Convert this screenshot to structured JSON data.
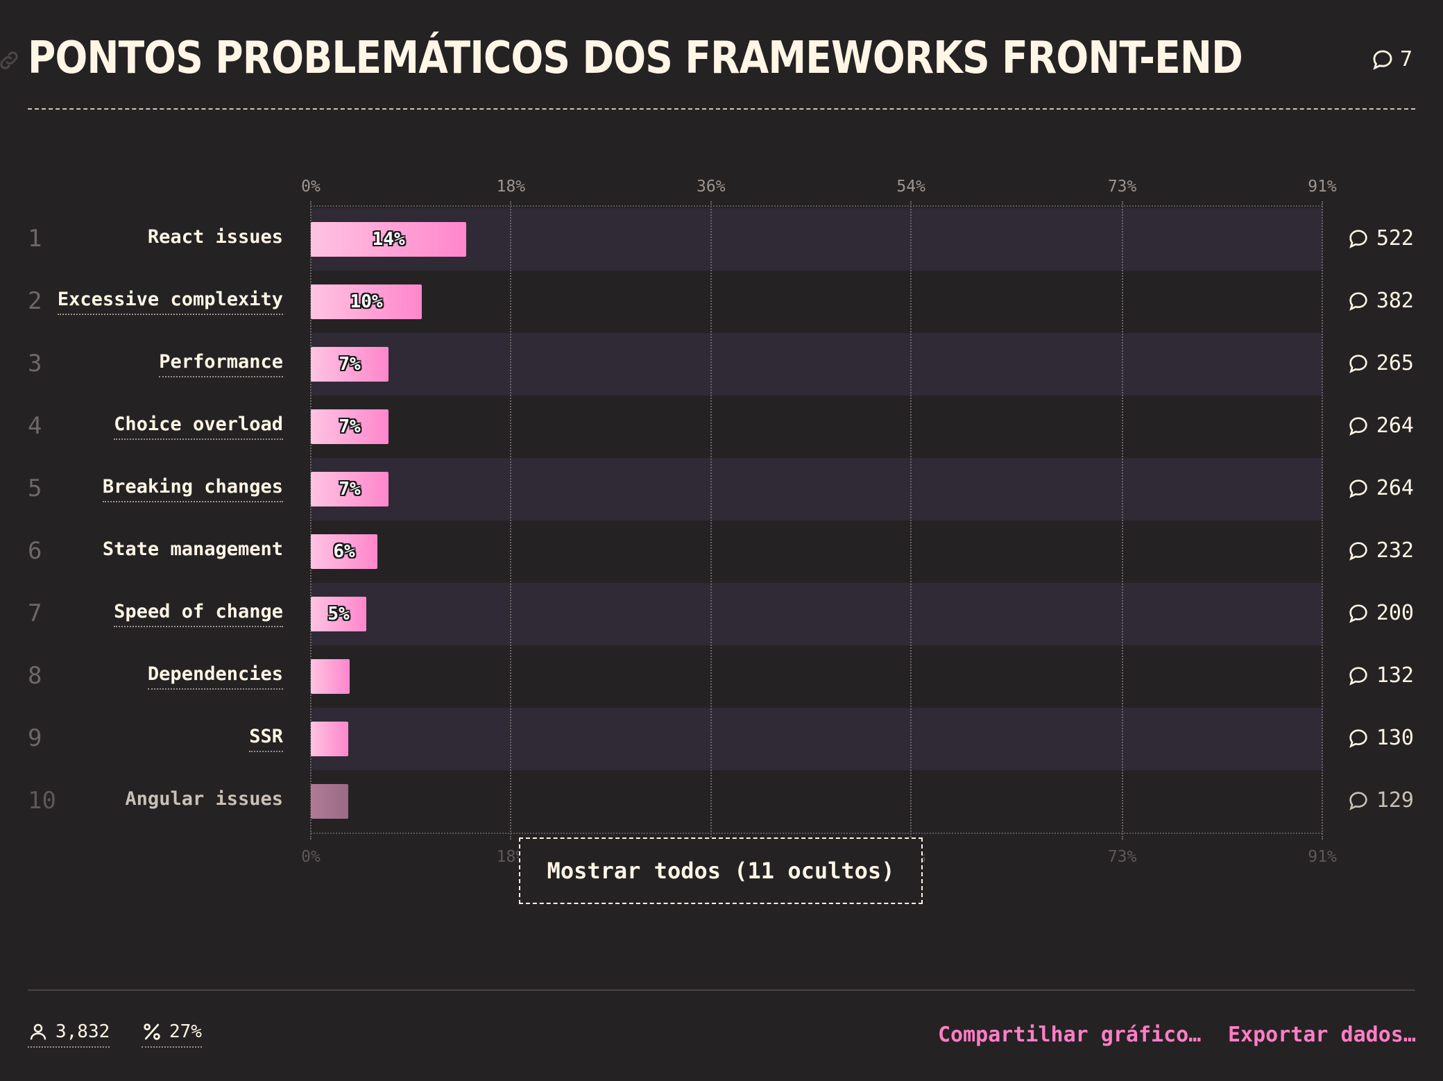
{
  "header": {
    "title": "PONTOS PROBLEMÁTICOS DOS FRAMEWORKS FRONT-END",
    "comment_count": "7"
  },
  "colors": {
    "background": "#252223",
    "bar_start": "#ffc3e2",
    "bar_end": "#ff86cc",
    "accent_link": "#ff7ec7",
    "text": "#fff6e6"
  },
  "chart_data": {
    "type": "bar",
    "orientation": "horizontal",
    "xlim": [
      0,
      91
    ],
    "ticks": [
      "0%",
      "18%",
      "36%",
      "54%",
      "73%",
      "91%"
    ],
    "tick_values": [
      0,
      18,
      36,
      54,
      73,
      91
    ],
    "grid": true,
    "rows": [
      {
        "rank": "1",
        "label": "React issues",
        "value": 14,
        "value_label": "14%",
        "comments": "522"
      },
      {
        "rank": "2",
        "label": "Excessive complexity",
        "value": 10,
        "value_label": "10%",
        "comments": "382"
      },
      {
        "rank": "3",
        "label": "Performance",
        "value": 7,
        "value_label": "7%",
        "comments": "265"
      },
      {
        "rank": "4",
        "label": "Choice overload",
        "value": 7,
        "value_label": "7%",
        "comments": "264"
      },
      {
        "rank": "5",
        "label": "Breaking changes",
        "value": 7,
        "value_label": "7%",
        "comments": "264"
      },
      {
        "rank": "6",
        "label": "State management",
        "value": 6,
        "value_label": "6%",
        "comments": "232"
      },
      {
        "rank": "7",
        "label": "Speed of change",
        "value": 5,
        "value_label": "5%",
        "comments": "200"
      },
      {
        "rank": "8",
        "label": "Dependencies",
        "value": 3.5,
        "value_label": "",
        "comments": "132"
      },
      {
        "rank": "9",
        "label": "SSR",
        "value": 3.4,
        "value_label": "",
        "comments": "130"
      },
      {
        "rank": "10",
        "label": "Angular issues",
        "value": 3.4,
        "value_label": "",
        "comments": "129"
      }
    ]
  },
  "show_all_label": "Mostrar todos (11 ocultos)",
  "footer": {
    "respondents": "3,832",
    "percent": "27%",
    "share_label": "Compartilhar gráfico…",
    "export_label": "Exportar dados…"
  }
}
